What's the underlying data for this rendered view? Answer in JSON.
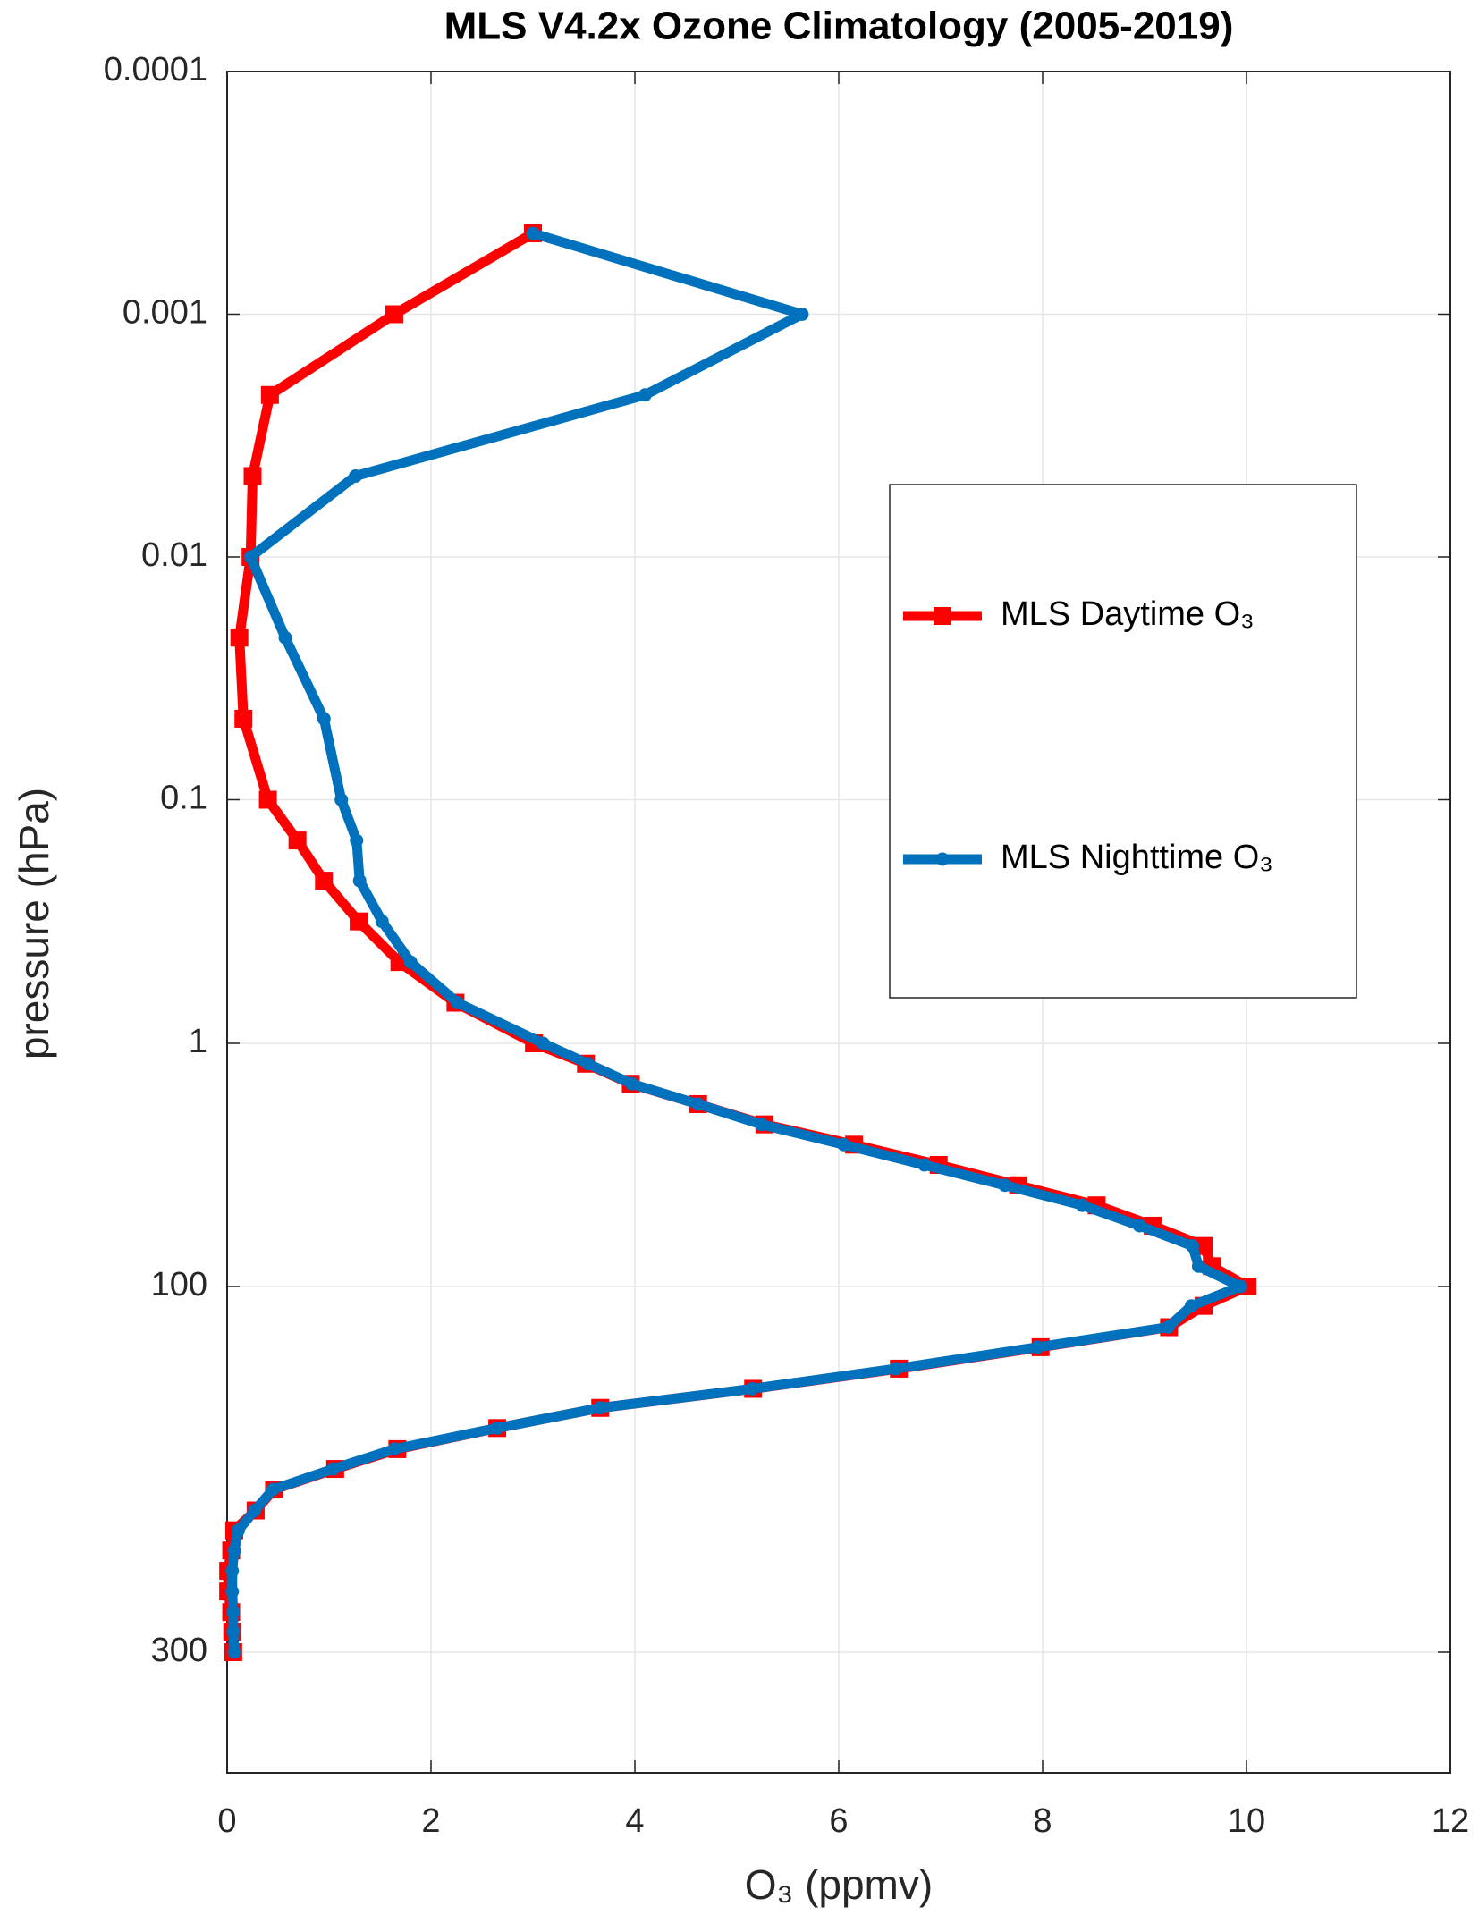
{
  "chart_data": {
    "type": "line",
    "title": "MLS V4.2x Ozone Climatology (2005-2019)",
    "x_label": "O₃ (ppmv)",
    "y_label": "pressure (hPa)",
    "xlim": [
      0,
      12
    ],
    "xticks": [
      0,
      2,
      4,
      6,
      8,
      10,
      12
    ],
    "ylim": [
      0.0001,
      430
    ],
    "yticks": [
      0.0001,
      0.001,
      0.01,
      0.1,
      1,
      100,
      300
    ],
    "yscale": "log",
    "yreverse": true,
    "grid": true,
    "legend": "right",
    "y": [
      0.000464,
      0.001,
      0.00215,
      0.00464,
      0.01,
      0.0215,
      0.0464,
      0.1,
      0.147,
      0.215,
      0.316,
      0.464,
      0.681,
      1,
      1.47,
      2.15,
      3.16,
      4.64,
      6.81,
      10,
      14.7,
      21.5,
      31.6,
      46.4,
      68.1,
      100,
      106,
      113,
      120,
      128,
      136,
      144,
      153,
      163,
      173,
      184,
      196,
      208,
      221,
      235,
      250,
      266,
      282,
      300
    ],
    "series": [
      {
        "name": "MLS Daytime O₃",
        "color": "#ff0000",
        "marker": "square",
        "values": [
          3.0,
          1.64,
          0.42,
          0.25,
          0.23,
          0.12,
          0.16,
          0.4,
          0.69,
          0.95,
          1.29,
          1.69,
          2.24,
          3.01,
          3.52,
          3.96,
          4.62,
          5.27,
          6.15,
          6.98,
          7.76,
          8.53,
          9.08,
          9.58,
          9.66,
          10.01,
          9.58,
          9.24,
          7.98,
          6.59,
          5.16,
          3.66,
          2.65,
          1.67,
          1.06,
          0.46,
          0.28,
          0.07,
          0.04,
          0.01,
          0.01,
          0.04,
          0.05,
          0.06
        ]
      },
      {
        "name": "MLS Nighttime O₃",
        "color": "#0072bd",
        "marker": "star",
        "values": [
          3.0,
          5.64,
          4.1,
          1.26,
          0.23,
          0.57,
          0.95,
          1.12,
          1.27,
          1.3,
          1.52,
          1.8,
          2.26,
          3.1,
          3.54,
          3.97,
          4.62,
          5.24,
          6.05,
          6.84,
          7.63,
          8.39,
          8.95,
          9.47,
          9.53,
          9.94,
          9.46,
          9.23,
          7.95,
          6.56,
          5.15,
          3.66,
          2.65,
          1.64,
          1.04,
          0.45,
          0.27,
          0.11,
          0.07,
          0.05,
          0.05,
          0.06,
          0.06,
          0.07
        ]
      }
    ]
  }
}
